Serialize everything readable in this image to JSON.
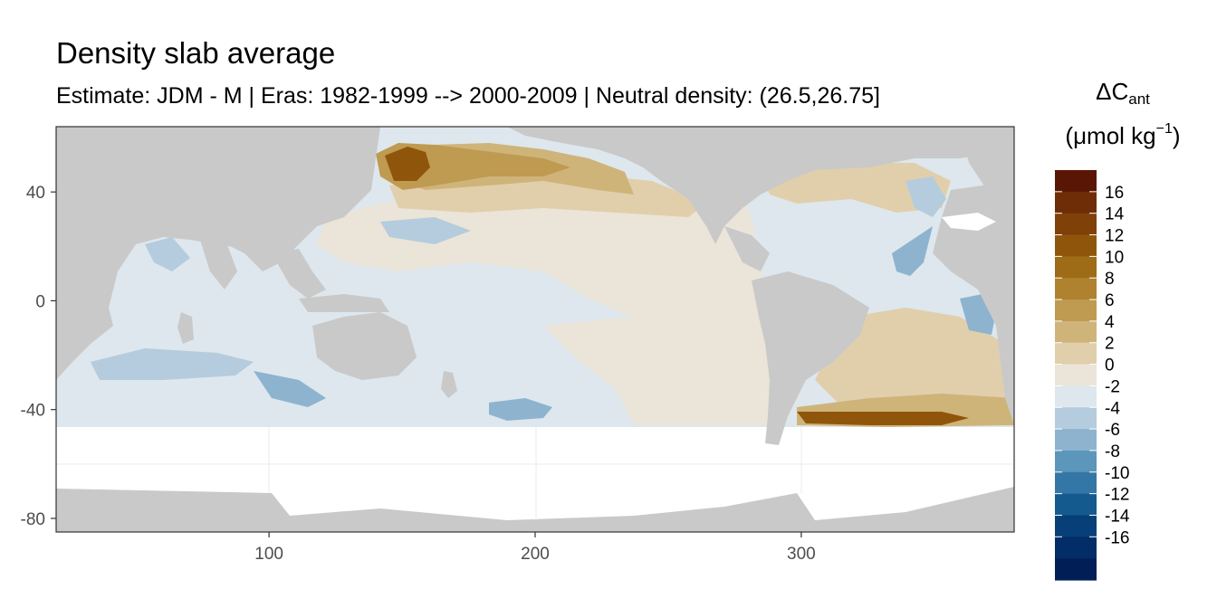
{
  "title": "Density slab average",
  "subtitle": "Estimate: JDM - M | Eras: 1982-1999 --> 2000-2009 | Neutral density: (26.5,26.75]",
  "legend": {
    "title_symbol": "ΔC",
    "title_sub": "ant",
    "unit_prefix": "(μmol kg",
    "unit_sup": "−1",
    "unit_suffix": ")",
    "labels": [
      "16",
      "14",
      "12",
      "10",
      "8",
      "6",
      "4",
      "2",
      "0",
      "-2",
      "-4",
      "-6",
      "-8",
      "-10",
      "-12",
      "-14",
      "-16"
    ],
    "colors": [
      "#5a1604",
      "#6e2d07",
      "#7f4108",
      "#8f560b",
      "#9e6b17",
      "#ae822f",
      "#bf9a51",
      "#cfb47a",
      "#e1cfac",
      "#ebe4d8",
      "#dde7ed",
      "#b4ccdd",
      "#8db3cf",
      "#5c96bb",
      "#3477a6",
      "#155a8f",
      "#073f79",
      "#032d66",
      "#011f56"
    ]
  },
  "chart_data": {
    "type": "heatmap",
    "title": "Density slab average",
    "subtitle": "Estimate: JDM - M | Eras: 1982-1999 --> 2000-2009 | Neutral density: (26.5,26.75]",
    "xlim": [
      20,
      380
    ],
    "ylim": [
      -85,
      64
    ],
    "x_ticks": [
      100,
      200,
      300
    ],
    "y_ticks": [
      40,
      0,
      -40,
      -80
    ],
    "grid": true,
    "legend_position": "right",
    "colors": {
      "land": "#c9c9c9",
      "no_data": "#ffffff",
      "panel_border": "#333333"
    }
  }
}
